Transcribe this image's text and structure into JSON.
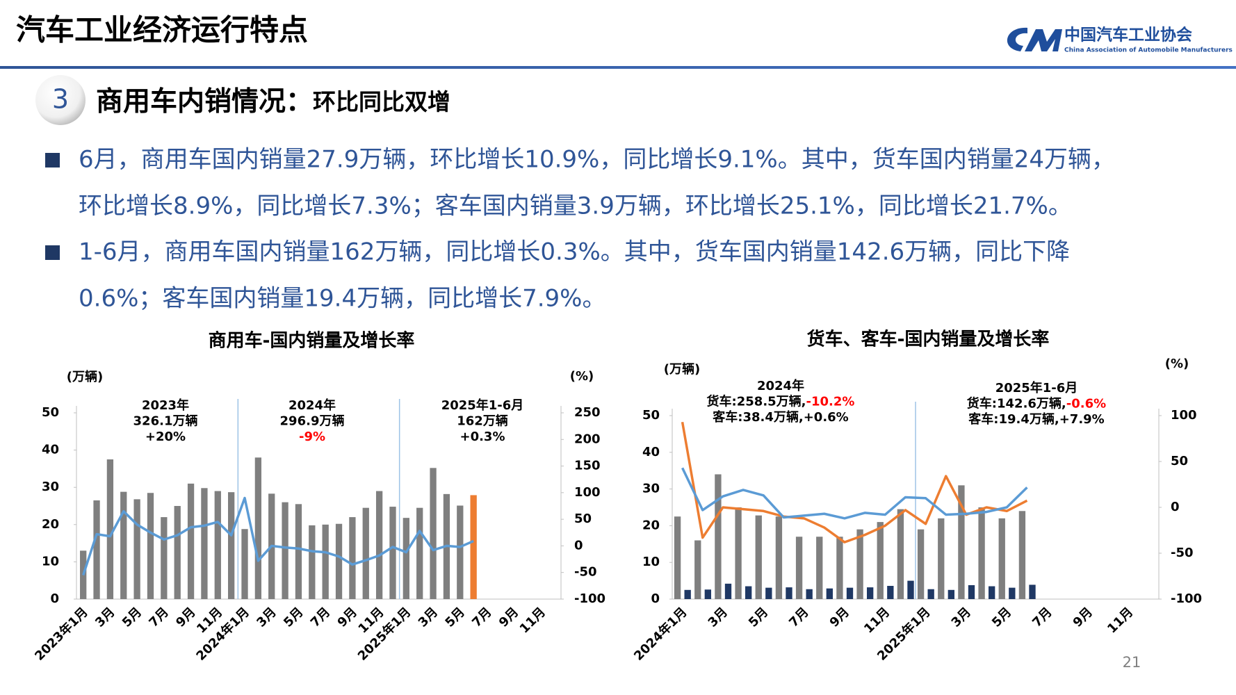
{
  "header": {
    "title": "汽车工业经济运行特点",
    "org_cn": "中国汽车工业协会",
    "org_en": "China Association of Automobile Manufacturers"
  },
  "section": {
    "number": "3",
    "title": "商用车内销情况：",
    "subtitle": "环比同比双增"
  },
  "bullets": [
    [
      "6月，商用车国内销量27.9万辆，环比增长10.9%，同比增长9.1%。其中，货车国内销量24万辆，",
      "环比增长8.9%，同比增长7.3%；客车国内销量3.9万辆，环比增长25.1%，同比增长21.7%。"
    ],
    [
      "1-6月，商用车国内销量162万辆，同比增长0.3%。其中，货车国内销量142.6万辆，同比下降",
      "0.6%；客车国内销量19.4万辆，同比增长7.9%。"
    ]
  ],
  "page_number": "21",
  "chart_data": [
    {
      "type": "combo",
      "title": "商用车-国内销量及增长率",
      "ylabel": "(万辆)",
      "y2label": "(%)",
      "categories": [
        "2023年1月",
        null,
        "3月",
        null,
        "5月",
        null,
        "7月",
        null,
        "9月",
        null,
        "11月",
        null,
        "2024年1月",
        null,
        "3月",
        null,
        "5月",
        null,
        "7月",
        null,
        "9月",
        null,
        "11月",
        null,
        "2025年1月",
        null,
        "3月",
        null,
        "5月",
        null,
        "7月",
        null,
        "9月",
        null,
        "11月",
        null
      ],
      "series": [
        {
          "type": "bar",
          "values": [
            13,
            26.5,
            37.5,
            28.8,
            26.8,
            28.5,
            22,
            25,
            31,
            29.8,
            29,
            28.7,
            18.8,
            38,
            28.3,
            26,
            25.5,
            19.8,
            20,
            20.2,
            22,
            24.5,
            29,
            24.8,
            21.8,
            24.5,
            35.2,
            28.2,
            25.1,
            27.9,
            null,
            null,
            null,
            null,
            null,
            null
          ],
          "colors": [
            "#7f7f7f",
            "#7f7f7f",
            "#7f7f7f",
            "#7f7f7f",
            "#7f7f7f",
            "#7f7f7f",
            "#7f7f7f",
            "#7f7f7f",
            "#7f7f7f",
            "#7f7f7f",
            "#7f7f7f",
            "#7f7f7f",
            "#7f7f7f",
            "#7f7f7f",
            "#7f7f7f",
            "#7f7f7f",
            "#7f7f7f",
            "#7f7f7f",
            "#7f7f7f",
            "#7f7f7f",
            "#7f7f7f",
            "#7f7f7f",
            "#7f7f7f",
            "#7f7f7f",
            "#7f7f7f",
            "#7f7f7f",
            "#7f7f7f",
            "#7f7f7f",
            "#7f7f7f",
            "#ed7d31",
            null,
            null,
            null,
            null,
            null,
            null
          ]
        },
        {
          "type": "line",
          "axis": "y2",
          "color": "#5b9bd5",
          "values": [
            -55,
            22,
            18,
            65,
            40,
            25,
            12,
            20,
            35,
            38,
            45,
            20,
            90,
            -28,
            0,
            -3,
            -5,
            -10,
            -12,
            -20,
            -35,
            -27,
            -18,
            -2,
            -12,
            28,
            -8,
            0,
            -2,
            9.1,
            null,
            null,
            null,
            null,
            null,
            null
          ]
        }
      ],
      "ylim": [
        0,
        50
      ],
      "yticks": [
        0,
        10,
        20,
        30,
        40,
        50
      ],
      "y2lim": [
        -100,
        250
      ],
      "y2ticks": [
        -100,
        -50,
        0,
        50,
        100,
        150,
        200,
        250
      ],
      "annotations": [
        [
          [
            {
              "text": "2023年"
            }
          ],
          [
            {
              "text": "326.1万辆"
            }
          ],
          [
            {
              "text": "+20%"
            }
          ]
        ],
        [
          [
            {
              "text": "2024年"
            }
          ],
          [
            {
              "text": "296.9万辆"
            }
          ],
          [
            {
              "text": "-9%",
              "color": "#ff0000"
            }
          ]
        ],
        [
          [
            {
              "text": "2025年1-6月"
            }
          ],
          [
            {
              "text": "162万辆"
            }
          ],
          [
            {
              "text": "+0.3%"
            }
          ]
        ]
      ]
    },
    {
      "type": "combo",
      "title": "货车、客车-国内销量及增长率",
      "ylabel": "(万辆)",
      "y2label": "(%)",
      "categories": [
        "2024年1月",
        null,
        "3月",
        null,
        "5月",
        null,
        "7月",
        null,
        "9月",
        null,
        "11月",
        null,
        "2025年1月",
        null,
        "3月",
        null,
        "5月",
        null,
        "7月",
        null,
        "9月",
        null,
        "11月",
        null
      ],
      "series": [
        {
          "type": "bar",
          "color": "#7f7f7f",
          "values": [
            22.5,
            16,
            34,
            25,
            22.8,
            22.5,
            17,
            17,
            17,
            19,
            21,
            24.5,
            19,
            22,
            31,
            25,
            22,
            24,
            null,
            null,
            null,
            null,
            null,
            null
          ]
        },
        {
          "type": "bar",
          "color": "#1f3864",
          "values": [
            2.5,
            2.6,
            4.2,
            3.5,
            3.1,
            3.2,
            2.7,
            2.9,
            3.1,
            3.2,
            3.6,
            5,
            2.7,
            2.5,
            3.8,
            3.5,
            3.1,
            3.9,
            null,
            null,
            null,
            null,
            null,
            null
          ]
        },
        {
          "type": "line",
          "axis": "y2",
          "color": "#ed7d31",
          "values": [
            93,
            -33,
            0,
            -2,
            -4,
            -10,
            -12,
            -22,
            -38,
            -30,
            -20,
            -3,
            -18,
            34,
            -8,
            0,
            -4,
            7.3,
            null,
            null,
            null,
            null,
            null,
            null
          ]
        },
        {
          "type": "line",
          "axis": "y2",
          "color": "#5b9bd5",
          "values": [
            43,
            -3,
            12,
            19,
            13,
            -11,
            -9,
            -7,
            -12,
            -6,
            -8,
            11,
            10,
            -8,
            -7,
            -5,
            0,
            21.7,
            null,
            null,
            null,
            null,
            null,
            null
          ]
        }
      ],
      "ylim": [
        0,
        50
      ],
      "yticks": [
        0,
        10,
        20,
        30,
        40,
        50
      ],
      "y2lim": [
        -100,
        100
      ],
      "y2ticks": [
        -100,
        -50,
        0,
        50,
        100
      ],
      "annotations": [
        [
          [
            {
              "text": "2024年"
            }
          ],
          [
            {
              "text": "货车:258.5万辆,"
            },
            {
              "text": "-10.2%",
              "color": "#ff0000"
            }
          ],
          [
            {
              "text": "客车:38.4万辆,+0.6%"
            }
          ]
        ],
        [
          [
            {
              "text": "2025年1-6月"
            }
          ],
          [
            {
              "text": "货车:142.6万辆,"
            },
            {
              "text": "-0.6%",
              "color": "#ff0000"
            }
          ],
          [
            {
              "text": "客车:19.4万辆,+7.9%"
            }
          ]
        ]
      ]
    }
  ]
}
